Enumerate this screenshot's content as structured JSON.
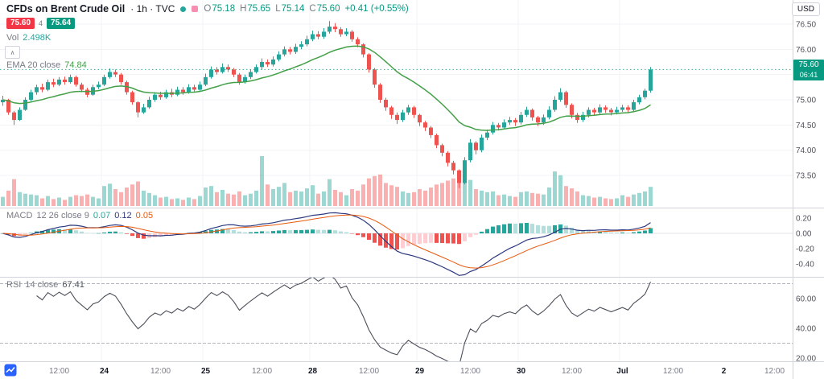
{
  "header": {
    "symbol": "CFDs on Brent Crude Oil",
    "title_meta": "· 1h · TVC",
    "ohlc": [
      {
        "label": "O",
        "value": "75.18"
      },
      {
        "label": "H",
        "value": "75.65"
      },
      {
        "label": "L",
        "value": "75.14"
      },
      {
        "label": "C",
        "value": "75.60"
      }
    ],
    "change": "+0.41 (+0.55%)"
  },
  "trade_panel": {
    "sell": "75.60",
    "spread": "4",
    "buy": "75.64"
  },
  "volume_legend": {
    "label": "Vol",
    "value": "2.498K"
  },
  "ema_legend": {
    "label": "EMA 20 close",
    "value": "74.84"
  },
  "macd_legend": {
    "label": "MACD",
    "params": "12 26 close 9",
    "hist": "0.07",
    "macd": "0.12",
    "signal": "0.05"
  },
  "rsi_legend": {
    "label": "RSI",
    "params": "14 close",
    "value": "67.41"
  },
  "axis_panel": {
    "currency": "USD",
    "last_price": "75.60",
    "countdown": "06:41"
  },
  "icons": {
    "collapse_chevron": "∧"
  },
  "colors": {
    "up": "#26a69a",
    "down": "#ef5350",
    "text_up": "#089981",
    "vol_up": "rgba(38,166,154,0.45)",
    "vol_down": "rgba(239,83,80,0.45)",
    "ema": "#43a047",
    "macd_line": "#2c387e",
    "signal_line": "#e8590c",
    "hist_up": "#26a69a",
    "hist_up_weak": "#b2dfdb",
    "hist_down": "#ef5350",
    "hist_down_weak": "#ffcdd2",
    "rsi_line": "#4a4f59",
    "band": "#b2b5be",
    "axis_text": "#50535e",
    "grid": "#f2f3f5",
    "divider": "#d1d4dc",
    "zero_line": "#e0e3eb",
    "sell": "#f23645",
    "buy": "#089981",
    "price_badge": "#089981",
    "label_gray": "#787b86",
    "title_color": "#131722"
  },
  "chart_data": {
    "type": "candlestick",
    "title": "CFDs on Brent Crude Oil",
    "interval": "1h",
    "exchange": "TVC",
    "last_bar": {
      "o": 75.18,
      "h": 75.65,
      "l": 75.14,
      "c": 75.6,
      "change": 0.41,
      "change_pct": 0.55
    },
    "price_axis": {
      "ticks": [
        76.5,
        76.0,
        75.5,
        75.0,
        74.5,
        74.0,
        73.5
      ],
      "current": 75.6
    },
    "day_start_indices": [
      18,
      36,
      55,
      74,
      92,
      110
    ],
    "time_labels": [
      {
        "i": 10,
        "t": "12:00"
      },
      {
        "i": 18,
        "t": "24",
        "major": true
      },
      {
        "i": 28,
        "t": "12:00"
      },
      {
        "i": 36,
        "t": "25",
        "major": true
      },
      {
        "i": 46,
        "t": "12:00"
      },
      {
        "i": 55,
        "t": "28",
        "major": true
      },
      {
        "i": 65,
        "t": "12:00"
      },
      {
        "i": 74,
        "t": "29",
        "major": true
      },
      {
        "i": 83,
        "t": "12:00"
      },
      {
        "i": 92,
        "t": "30",
        "major": true
      },
      {
        "i": 101,
        "t": "12:00"
      },
      {
        "i": 110,
        "t": "Jul",
        "major": true
      },
      {
        "i": 119,
        "t": "12:00"
      },
      {
        "i": 128,
        "t": "2",
        "major": true
      },
      {
        "i": 137,
        "t": "12:00"
      }
    ],
    "indicators": {
      "ema": {
        "period": 20,
        "last": 74.84
      },
      "macd": {
        "fast": 12,
        "slow": 26,
        "signal_period": 9,
        "ticks": [
          0.2,
          0.0,
          -0.2,
          -0.4
        ],
        "last_hist": 0.07,
        "last_macd": 0.12,
        "last_signal": 0.05
      },
      "rsi": {
        "period": 14,
        "last": 67.41,
        "ticks": [
          60,
          40,
          20
        ],
        "bands": [
          70,
          30
        ]
      }
    },
    "volume_last": "2.498K",
    "candles": [
      [
        74.95,
        75.08,
        74.88,
        75.0,
        1.2
      ],
      [
        75.0,
        75.02,
        74.7,
        74.75,
        2.0
      ],
      [
        74.75,
        74.78,
        74.5,
        74.6,
        3.5
      ],
      [
        74.6,
        74.85,
        74.58,
        74.8,
        1.8
      ],
      [
        74.8,
        75.05,
        74.78,
        75.0,
        1.6
      ],
      [
        75.0,
        75.2,
        74.97,
        75.15,
        1.5
      ],
      [
        75.15,
        75.3,
        75.1,
        75.25,
        1.4
      ],
      [
        75.25,
        75.32,
        75.15,
        75.2,
        1.0
      ],
      [
        75.2,
        75.4,
        75.17,
        75.35,
        1.3
      ],
      [
        75.35,
        75.42,
        75.25,
        75.3,
        0.9
      ],
      [
        75.3,
        75.45,
        75.27,
        75.4,
        1.1
      ],
      [
        75.4,
        75.46,
        75.3,
        75.35,
        0.8
      ],
      [
        75.35,
        75.5,
        75.32,
        75.45,
        1.2
      ],
      [
        75.45,
        75.48,
        75.26,
        75.3,
        1.4
      ],
      [
        75.3,
        75.34,
        75.15,
        75.2,
        1.3
      ],
      [
        75.2,
        75.24,
        75.05,
        75.1,
        1.5
      ],
      [
        75.1,
        75.3,
        75.08,
        75.25,
        1.2
      ],
      [
        75.25,
        75.36,
        75.21,
        75.3,
        1.0
      ],
      [
        75.3,
        75.5,
        75.27,
        75.45,
        2.6
      ],
      [
        75.45,
        75.62,
        75.42,
        75.55,
        2.9
      ],
      [
        75.55,
        75.6,
        75.45,
        75.5,
        2.2
      ],
      [
        75.5,
        75.53,
        75.3,
        75.35,
        1.8
      ],
      [
        75.35,
        75.38,
        75.1,
        75.15,
        2.4
      ],
      [
        75.15,
        75.18,
        74.9,
        74.95,
        2.8
      ],
      [
        74.95,
        74.97,
        74.65,
        74.75,
        3.2
      ],
      [
        74.75,
        74.92,
        74.72,
        74.85,
        2.0
      ],
      [
        74.85,
        75.06,
        74.82,
        75.0,
        1.7
      ],
      [
        75.0,
        75.15,
        74.96,
        75.1,
        1.4
      ],
      [
        75.1,
        75.16,
        75.0,
        75.05,
        1.1
      ],
      [
        75.05,
        75.2,
        75.02,
        75.15,
        1.2
      ],
      [
        75.15,
        75.22,
        75.05,
        75.1,
        0.9
      ],
      [
        75.1,
        75.26,
        75.07,
        75.2,
        1.0
      ],
      [
        75.2,
        75.25,
        75.1,
        75.15,
        0.8
      ],
      [
        75.15,
        75.31,
        75.12,
        75.25,
        1.1
      ],
      [
        75.25,
        75.3,
        75.16,
        75.2,
        0.9
      ],
      [
        75.2,
        75.36,
        75.17,
        75.3,
        1.3
      ],
      [
        75.3,
        75.52,
        75.27,
        75.45,
        2.4
      ],
      [
        75.45,
        75.66,
        75.42,
        75.6,
        2.6
      ],
      [
        75.6,
        75.65,
        75.5,
        75.55,
        1.8
      ],
      [
        75.55,
        75.72,
        75.52,
        75.65,
        2.1
      ],
      [
        75.65,
        75.7,
        75.55,
        75.6,
        1.6
      ],
      [
        75.6,
        75.63,
        75.45,
        75.5,
        1.5
      ],
      [
        75.5,
        75.53,
        75.3,
        75.35,
        1.9
      ],
      [
        75.35,
        75.5,
        75.32,
        75.45,
        1.4
      ],
      [
        75.45,
        75.6,
        75.41,
        75.55,
        1.6
      ],
      [
        75.55,
        75.7,
        75.52,
        75.65,
        2.0
      ],
      [
        75.65,
        75.82,
        75.6,
        75.75,
        6.5
      ],
      [
        75.75,
        75.8,
        75.65,
        75.7,
        2.8
      ],
      [
        75.7,
        75.86,
        75.66,
        75.8,
        2.2
      ],
      [
        75.8,
        75.96,
        75.76,
        75.9,
        2.5
      ],
      [
        75.9,
        76.06,
        75.86,
        76.0,
        3.0
      ],
      [
        76.0,
        76.05,
        75.9,
        75.95,
        1.8
      ],
      [
        75.95,
        76.11,
        75.91,
        76.05,
        2.0
      ],
      [
        76.05,
        76.16,
        76.0,
        76.1,
        1.9
      ],
      [
        76.1,
        76.27,
        76.06,
        76.2,
        2.3
      ],
      [
        76.2,
        76.37,
        76.16,
        76.3,
        2.7
      ],
      [
        76.3,
        76.36,
        76.2,
        76.25,
        1.6
      ],
      [
        76.25,
        76.42,
        76.21,
        76.35,
        1.9
      ],
      [
        76.35,
        76.56,
        76.31,
        76.45,
        3.5
      ],
      [
        76.45,
        76.52,
        76.34,
        76.4,
        2.1
      ],
      [
        76.4,
        76.44,
        76.25,
        76.3,
        1.8
      ],
      [
        76.3,
        76.42,
        76.26,
        76.35,
        1.4
      ],
      [
        76.35,
        76.38,
        76.15,
        76.2,
        2.2
      ],
      [
        76.2,
        76.24,
        76.04,
        76.1,
        2.0
      ],
      [
        76.1,
        76.12,
        75.84,
        75.9,
        2.8
      ],
      [
        75.9,
        75.92,
        75.54,
        75.6,
        3.6
      ],
      [
        75.6,
        75.63,
        75.24,
        75.3,
        3.9
      ],
      [
        75.3,
        75.33,
        74.94,
        75.0,
        4.1
      ],
      [
        75.0,
        75.04,
        74.78,
        74.85,
        3.0
      ],
      [
        74.85,
        74.88,
        74.62,
        74.7,
        2.7
      ],
      [
        74.7,
        74.75,
        74.52,
        74.6,
        2.5
      ],
      [
        74.6,
        74.8,
        74.56,
        74.75,
        1.9
      ],
      [
        74.75,
        74.9,
        74.7,
        74.85,
        1.7
      ],
      [
        74.85,
        74.88,
        74.64,
        74.7,
        1.8
      ],
      [
        74.7,
        74.72,
        74.48,
        74.55,
        2.2
      ],
      [
        74.55,
        74.58,
        74.38,
        74.45,
        2.0
      ],
      [
        74.45,
        74.48,
        74.24,
        74.3,
        2.4
      ],
      [
        74.3,
        74.33,
        74.04,
        74.1,
        2.8
      ],
      [
        74.1,
        74.13,
        73.88,
        73.95,
        3.0
      ],
      [
        73.95,
        73.98,
        73.68,
        73.75,
        3.3
      ],
      [
        73.75,
        73.79,
        73.52,
        73.6,
        3.6
      ],
      [
        73.6,
        73.62,
        73.25,
        73.35,
        4.2
      ],
      [
        73.35,
        73.86,
        73.32,
        73.8,
        3.8
      ],
      [
        73.8,
        74.22,
        73.76,
        74.15,
        3.4
      ],
      [
        74.15,
        74.18,
        73.92,
        74.0,
        2.2
      ],
      [
        74.0,
        74.31,
        73.96,
        74.25,
        2.0
      ],
      [
        74.25,
        74.41,
        74.2,
        74.35,
        1.8
      ],
      [
        74.35,
        74.56,
        74.31,
        74.5,
        1.9
      ],
      [
        74.5,
        74.54,
        74.39,
        74.45,
        1.4
      ],
      [
        74.45,
        74.61,
        74.41,
        74.55,
        1.5
      ],
      [
        74.55,
        74.66,
        74.5,
        74.6,
        1.3
      ],
      [
        74.6,
        74.64,
        74.48,
        74.55,
        1.2
      ],
      [
        74.55,
        74.76,
        74.51,
        74.7,
        1.8
      ],
      [
        74.7,
        74.86,
        74.66,
        74.8,
        1.9
      ],
      [
        74.8,
        74.83,
        74.59,
        74.65,
        1.7
      ],
      [
        74.65,
        74.68,
        74.48,
        74.55,
        1.6
      ],
      [
        74.55,
        74.71,
        74.5,
        74.65,
        1.5
      ],
      [
        74.65,
        74.87,
        74.61,
        74.8,
        2.4
      ],
      [
        74.8,
        75.07,
        74.76,
        75.0,
        4.5
      ],
      [
        75.0,
        75.23,
        74.96,
        75.15,
        4.0
      ],
      [
        75.15,
        75.18,
        74.84,
        74.9,
        2.6
      ],
      [
        74.9,
        74.93,
        74.63,
        74.7,
        2.3
      ],
      [
        74.7,
        74.74,
        74.54,
        74.6,
        1.9
      ],
      [
        74.6,
        74.76,
        74.56,
        74.7,
        1.4
      ],
      [
        74.7,
        74.85,
        74.65,
        74.8,
        1.3
      ],
      [
        74.8,
        74.84,
        74.69,
        74.75,
        1.1
      ],
      [
        74.75,
        74.91,
        74.71,
        74.85,
        1.2
      ],
      [
        74.85,
        74.89,
        74.74,
        74.8,
        1.0
      ],
      [
        74.8,
        74.84,
        74.69,
        74.75,
        0.9
      ],
      [
        74.75,
        74.86,
        74.71,
        74.8,
        1.0
      ],
      [
        74.8,
        74.9,
        74.76,
        74.85,
        1.4
      ],
      [
        74.85,
        74.89,
        74.74,
        74.8,
        1.2
      ],
      [
        74.8,
        75.0,
        74.77,
        74.95,
        1.5
      ],
      [
        74.95,
        75.1,
        74.91,
        75.05,
        1.7
      ],
      [
        75.05,
        75.22,
        75.01,
        75.18,
        1.9
      ],
      [
        75.18,
        75.65,
        75.14,
        75.6,
        2.498
      ]
    ]
  }
}
